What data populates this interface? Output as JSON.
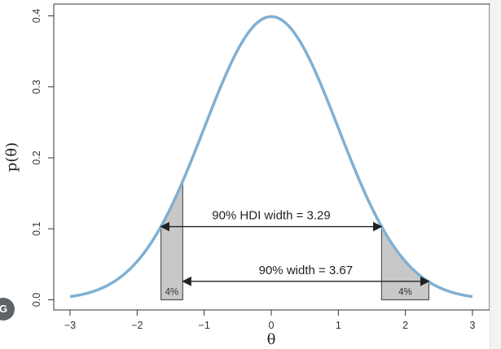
{
  "chart_data": {
    "type": "line",
    "xlabel": "θ",
    "ylabel": "p(θ)",
    "xlim": [
      -3,
      3
    ],
    "ylim": [
      0,
      0.4
    ],
    "x_ticks": [
      "−3",
      "−2",
      "−1",
      "0",
      "1",
      "2",
      "3"
    ],
    "y_ticks": [
      "0.0",
      "0.1",
      "0.2",
      "0.3",
      "0.4"
    ],
    "grid": false,
    "series": [
      {
        "distribution": "normal",
        "mean": 0,
        "sd": 1,
        "x_range": [
          -3,
          3
        ],
        "color": "#7fb0d4"
      }
    ],
    "tail_regions": [
      {
        "x_start": -1.645,
        "x_end": -1.32,
        "label": "4%",
        "color": "#c8c8c8"
      },
      {
        "x_start": 1.645,
        "x_end": 2.35,
        "label": "4%",
        "color": "#c8c8c8"
      }
    ],
    "annotations": [
      {
        "text": "90% HDI width = 3.29",
        "x_start": -1.645,
        "x_end": 1.645,
        "y": 0.1031
      },
      {
        "text": "90% width = 3.67",
        "x_start": -1.32,
        "x_end": 2.35,
        "y": 0.026
      }
    ]
  },
  "overlay": {
    "badge_text": "G"
  }
}
